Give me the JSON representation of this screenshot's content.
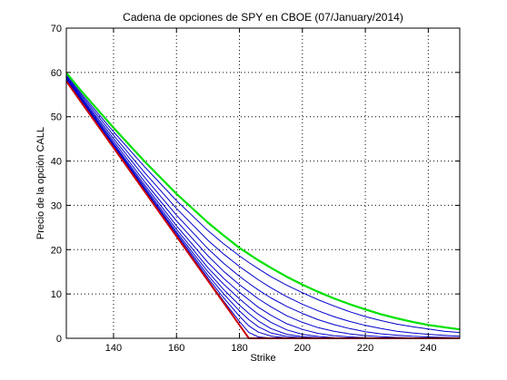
{
  "chart_data": {
    "type": "line",
    "title": "Cadena de opciones de SPY en CBOE  (07/January/2014)",
    "xlabel": "Strike",
    "ylabel": "Precio de la opción CALL",
    "xlim": [
      125,
      250
    ],
    "ylim": [
      0,
      70
    ],
    "x_ticks": [
      140,
      160,
      180,
      200,
      220,
      240
    ],
    "y_ticks": [
      0,
      10,
      20,
      30,
      40,
      50,
      60,
      70
    ],
    "grid": true,
    "legend": "none",
    "underlying_price": 183,
    "intrinsic_color": "#cc0000",
    "longest_expiry_color": "#00e000",
    "chain_color": "#0000cc",
    "x": [
      125,
      130,
      140,
      150,
      160,
      170,
      175,
      180,
      183,
      186,
      190,
      195,
      200,
      205,
      210,
      215,
      220,
      225,
      230,
      235,
      240,
      245,
      250
    ],
    "series": [
      {
        "values": [
          58.0,
          53.0,
          43.0,
          33.0,
          23.0,
          13.0,
          8.0,
          3.0,
          0.0,
          0.0,
          0.0,
          0.0,
          0.0,
          0.0,
          0.0,
          0.0,
          0.0,
          0.0,
          0.0,
          0.0,
          0.0,
          0.0,
          0.0
        ]
      },
      {
        "values": [
          58.1,
          53.1,
          43.1,
          33.1,
          23.1,
          13.2,
          8.4,
          3.8,
          1.3,
          0.3,
          0.05,
          0.0,
          0.0,
          0.0,
          0.0,
          0.0,
          0.0,
          0.0,
          0.0,
          0.0,
          0.0,
          0.0,
          0.0
        ]
      },
      {
        "values": [
          58.2,
          53.2,
          43.2,
          33.2,
          23.3,
          13.6,
          9.1,
          5.0,
          2.8,
          1.4,
          0.5,
          0.1,
          0.02,
          0.0,
          0.0,
          0.0,
          0.0,
          0.0,
          0.0,
          0.0,
          0.0,
          0.0,
          0.0
        ]
      },
      {
        "values": [
          58.3,
          53.3,
          43.3,
          33.4,
          23.6,
          14.2,
          10.0,
          6.2,
          4.2,
          2.6,
          1.2,
          0.4,
          0.1,
          0.03,
          0.0,
          0.0,
          0.0,
          0.0,
          0.0,
          0.0,
          0.0,
          0.0,
          0.0
        ]
      },
      {
        "values": [
          58.4,
          53.4,
          43.5,
          33.6,
          24.0,
          15.0,
          11.0,
          7.5,
          5.6,
          3.9,
          2.2,
          0.9,
          0.35,
          0.12,
          0.04,
          0.0,
          0.0,
          0.0,
          0.0,
          0.0,
          0.0,
          0.0,
          0.0
        ]
      },
      {
        "values": [
          58.5,
          53.5,
          43.7,
          34.0,
          24.6,
          15.9,
          12.2,
          8.9,
          7.1,
          5.4,
          3.6,
          1.9,
          0.9,
          0.4,
          0.15,
          0.06,
          0.02,
          0.0,
          0.0,
          0.0,
          0.0,
          0.0,
          0.0
        ]
      },
      {
        "values": [
          58.6,
          53.7,
          44.0,
          34.5,
          25.4,
          17.1,
          13.5,
          10.4,
          8.7,
          7.0,
          5.2,
          3.3,
          2.0,
          1.1,
          0.6,
          0.3,
          0.15,
          0.07,
          0.03,
          0.0,
          0.0,
          0.0,
          0.0
        ]
      },
      {
        "values": [
          58.7,
          53.9,
          44.5,
          35.2,
          26.5,
          18.6,
          15.1,
          12.1,
          10.5,
          8.9,
          7.1,
          5.1,
          3.6,
          2.4,
          1.6,
          1.0,
          0.6,
          0.35,
          0.2,
          0.1,
          0.05,
          0.02,
          0.0
        ]
      },
      {
        "values": [
          58.9,
          54.2,
          45.1,
          36.2,
          27.8,
          20.2,
          16.9,
          14.0,
          12.4,
          10.9,
          9.1,
          7.2,
          5.6,
          4.2,
          3.1,
          2.2,
          1.5,
          1.0,
          0.7,
          0.45,
          0.3,
          0.2,
          0.12
        ]
      },
      {
        "values": [
          59.1,
          54.6,
          45.8,
          37.3,
          29.3,
          22.1,
          19.0,
          16.2,
          14.7,
          13.2,
          11.4,
          9.4,
          7.7,
          6.2,
          4.9,
          3.8,
          2.9,
          2.2,
          1.6,
          1.2,
          0.9,
          0.65,
          0.45
        ]
      },
      {
        "values": [
          59.4,
          55.0,
          46.6,
          38.6,
          31.1,
          24.3,
          21.3,
          18.6,
          17.1,
          15.7,
          13.9,
          12.0,
          10.3,
          8.7,
          7.3,
          6.0,
          4.9,
          4.0,
          3.2,
          2.6,
          2.1,
          1.6,
          1.3
        ]
      },
      {
        "values": [
          59.9,
          55.6,
          47.5,
          39.8,
          32.6,
          26.1,
          23.2,
          20.4,
          19.0,
          17.6,
          15.9,
          13.9,
          12.1,
          10.5,
          9.0,
          7.7,
          6.5,
          5.4,
          4.5,
          3.7,
          3.0,
          2.5,
          2.0
        ]
      }
    ]
  }
}
